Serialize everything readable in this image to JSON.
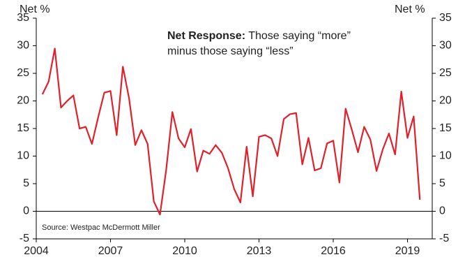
{
  "chart_data": {
    "type": "line",
    "y_label": "Net %",
    "y2_label": "Net %",
    "annotation": {
      "bold": "Net Response:",
      "lines": [
        "Those saying “more”",
        "minus those saying “less”"
      ]
    },
    "source": "Source: Westpac McDermott Miller",
    "x": [
      2004.25,
      2004.5,
      2004.75,
      2005,
      2005.25,
      2005.5,
      2005.75,
      2006,
      2006.25,
      2006.5,
      2006.75,
      2007,
      2007.25,
      2007.5,
      2007.75,
      2008,
      2008.25,
      2008.5,
      2008.75,
      2009,
      2009.25,
      2009.5,
      2009.75,
      2010,
      2010.25,
      2010.5,
      2010.75,
      2011,
      2011.25,
      2011.5,
      2011.75,
      2012,
      2012.25,
      2012.5,
      2012.75,
      2013,
      2013.25,
      2013.5,
      2013.75,
      2014,
      2014.25,
      2014.5,
      2014.75,
      2015,
      2015.25,
      2015.5,
      2015.75,
      2016,
      2016.25,
      2016.5,
      2016.75,
      2017,
      2017.25,
      2017.5,
      2017.75,
      2018,
      2018.25,
      2018.5,
      2018.75,
      2019,
      2019.25,
      2019.5
    ],
    "series": [
      {
        "color": "#e0202a",
        "values": [
          21.2,
          23.5,
          29.5,
          18.8,
          20,
          21,
          15,
          15.3,
          12.2,
          17,
          21.5,
          21.8,
          13.8,
          26.2,
          20.5,
          12,
          14.7,
          12.2,
          1.8,
          -0.6,
          7.5,
          18,
          13.2,
          11.6,
          14.9,
          7.2,
          11,
          10.4,
          12,
          10.6,
          7.8,
          4,
          1.6,
          11.7,
          2.7,
          13.5,
          13.8,
          13.2,
          10,
          16.7,
          17.6,
          17.8,
          8.5,
          13.3,
          7.4,
          7.8,
          12.3,
          12.8,
          5.2,
          18.6,
          14.8,
          10.7,
          15.3,
          13,
          7.3,
          11.2,
          14.1,
          10.3,
          21.7,
          13.3,
          17.2,
          2.1
        ]
      }
    ],
    "xlim": [
      2004,
      2020
    ],
    "xticks": [
      2004,
      2007,
      2010,
      2013,
      2016,
      2019
    ],
    "ylim": [
      -5,
      35
    ],
    "yticks": [
      -5,
      0,
      5,
      10,
      15,
      20,
      25,
      30,
      35
    ],
    "y2lim": [
      -5,
      35
    ],
    "y2ticks": [
      -5,
      0,
      5,
      10,
      15,
      20,
      25,
      30,
      35
    ],
    "grid": false
  }
}
